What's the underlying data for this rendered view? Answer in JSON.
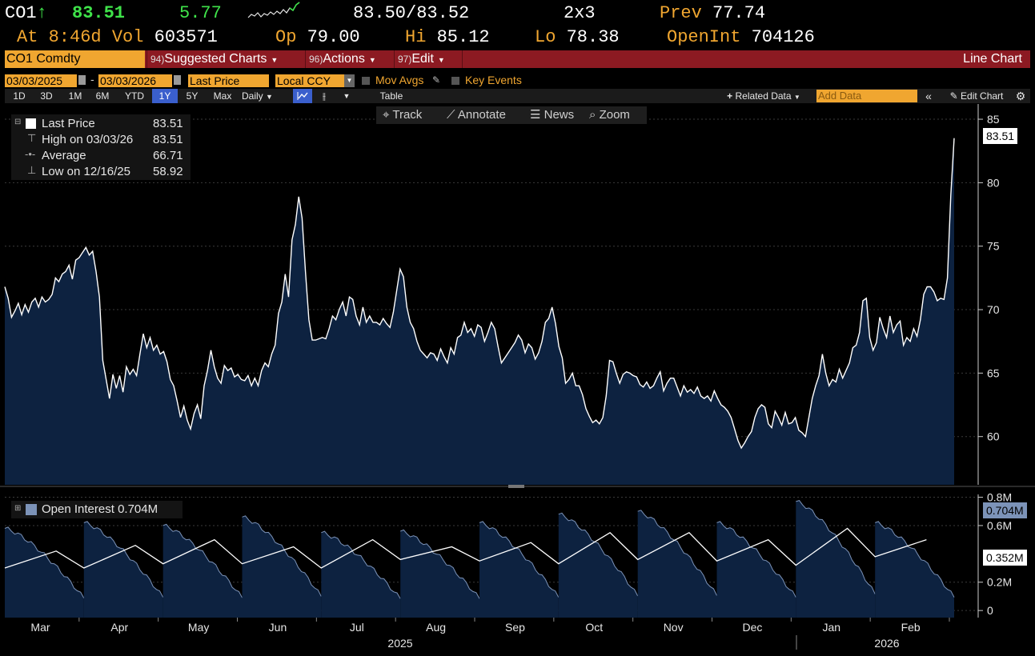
{
  "quote": {
    "ticker": "CO1",
    "direction_arrow": "↑",
    "last": "83.51",
    "change": "5.77",
    "bid_ask": "83.50/83.52",
    "size": "2x3",
    "prev_label": "Prev",
    "prev": "77.74",
    "at_label": "At",
    "time": "8:46d",
    "vol_label": "Vol",
    "vol": "603571",
    "open_label": "Op",
    "open": "79.00",
    "hi_label": "Hi",
    "hi": "85.12",
    "lo_label": "Lo",
    "lo": "78.38",
    "oi_label": "OpenInt",
    "oi": "704126"
  },
  "command_bar": {
    "security": "CO1 Comdty",
    "suggested": {
      "num": "94)",
      "label": "Suggested Charts"
    },
    "actions": {
      "num": "96)",
      "label": "Actions"
    },
    "edit": {
      "num": "97)",
      "label": "Edit"
    },
    "chart_type": "Line Chart"
  },
  "range": {
    "start": "03/03/2025",
    "sep": "-",
    "end": "03/03/2026",
    "field": "Last Price",
    "currency": "Local CCY",
    "mov_avgs": "Mov Avgs",
    "key_events": "Key Events"
  },
  "toolbar": {
    "periods": [
      "1D",
      "3D",
      "1M",
      "6M",
      "YTD",
      "1Y",
      "5Y",
      "Max"
    ],
    "selected_period": "1Y",
    "frequency": "Daily",
    "table": "Table",
    "related": "Related Data",
    "add_data_placeholder": "Add Data",
    "edit_chart": "Edit Chart"
  },
  "overlay": {
    "track": "Track",
    "annotate": "Annotate",
    "news": "News",
    "zoom": "Zoom"
  },
  "legend": {
    "last_price_label": "Last Price",
    "last_price": "83.51",
    "high_label": "High on 03/03/26",
    "high": "83.51",
    "average_label": "Average",
    "average": "66.71",
    "low_label": "Low on 12/16/25",
    "low": "58.92"
  },
  "oi_legend": {
    "label": "Open Interest",
    "value": "0.704M"
  },
  "tags": {
    "price": "83.51",
    "oi": "0.704M",
    "oi2": "0.352M"
  },
  "colors": {
    "accent": "#f0a630",
    "command_bar": "#8c1a22",
    "area": "#0d2240",
    "line": "#ffffff",
    "positive": "#3fe34a"
  },
  "chart_data": [
    {
      "type": "area",
      "series_name": "Last Price",
      "x_start": "2025-03-03",
      "x_end": "2026-03-03",
      "values": [
        71.8,
        70.9,
        69.4,
        69.9,
        70.5,
        69.6,
        70.4,
        69.8,
        70.6,
        70.9,
        70.2,
        71.0,
        70.6,
        70.8,
        71.2,
        72.5,
        72.2,
        72.8,
        73.0,
        73.5,
        72.4,
        73.9,
        74.1,
        74.5,
        74.9,
        74.3,
        74.6,
        73.0,
        71.0,
        66.0,
        64.5,
        63.0,
        64.9,
        63.8,
        64.8,
        63.5,
        65.5,
        64.9,
        65.3,
        64.8,
        66.5,
        68.1,
        67.0,
        67.8,
        66.8,
        67.2,
        66.5,
        66.7,
        65.9,
        64.5,
        64.0,
        62.8,
        61.5,
        62.4,
        61.3,
        60.6,
        61.8,
        62.5,
        61.4,
        64.0,
        65.2,
        66.8,
        65.5,
        64.6,
        64.2,
        65.6,
        65.2,
        65.4,
        64.7,
        64.9,
        64.5,
        64.4,
        64.8,
        64.0,
        64.6,
        64.0,
        65.2,
        65.8,
        65.5,
        66.5,
        67.2,
        69.7,
        70.6,
        72.8,
        71.0,
        75.5,
        76.7,
        78.9,
        77.2,
        73.0,
        69.2,
        67.6,
        67.6,
        67.7,
        67.8,
        67.7,
        68.5,
        69.5,
        69.2,
        70.0,
        70.6,
        69.5,
        71.0,
        70.8,
        69.5,
        68.8,
        70.2,
        69.0,
        69.5,
        69.0,
        69.0,
        68.8,
        69.3,
        68.9,
        68.6,
        69.8,
        71.5,
        73.2,
        72.6,
        70.2,
        69.0,
        68.5,
        67.5,
        66.8,
        66.5,
        66.2,
        66.6,
        66.5,
        66.0,
        66.9,
        66.3,
        65.8,
        67.0,
        66.5,
        67.8,
        68.0,
        69.0,
        68.2,
        68.5,
        67.9,
        68.8,
        68.6,
        67.5,
        68.2,
        69.0,
        68.5,
        67.1,
        65.8,
        66.2,
        66.6,
        67.0,
        67.4,
        68.0,
        67.6,
        66.6,
        67.3,
        67.0,
        66.1,
        66.6,
        67.5,
        69.0,
        69.3,
        70.2,
        68.9,
        67.1,
        66.2,
        64.2,
        64.5,
        65.0,
        64.0,
        64.0,
        63.3,
        62.2,
        61.6,
        61.1,
        61.3,
        61.0,
        61.5,
        63.2,
        66.0,
        65.9,
        65.0,
        64.2,
        64.9,
        65.1,
        65.0,
        64.8,
        64.7,
        64.1,
        63.9,
        64.3,
        63.8,
        64.0,
        64.6,
        65.1,
        63.6,
        64.2,
        64.6,
        64.6,
        63.9,
        63.2,
        64.0,
        63.5,
        63.7,
        63.4,
        63.9,
        63.2,
        63.0,
        63.2,
        62.8,
        63.6,
        63.0,
        62.5,
        62.3,
        62.0,
        61.5,
        60.6,
        59.7,
        59.1,
        59.5,
        60.0,
        60.4,
        61.5,
        62.2,
        62.5,
        62.3,
        61.0,
        60.7,
        62.0,
        61.5,
        60.9,
        61.9,
        61.0,
        61.1,
        61.5,
        60.5,
        60.3,
        60.0,
        61.5,
        63.0,
        64.0,
        64.8,
        66.5,
        65.0,
        64.0,
        64.5,
        64.3,
        65.3,
        64.6,
        65.2,
        65.8,
        67.0,
        67.2,
        68.2,
        70.7,
        70.9,
        67.8,
        66.8,
        67.4,
        69.4,
        68.5,
        67.8,
        69.5,
        68.2,
        68.8,
        69.1,
        67.2,
        67.8,
        67.5,
        68.5,
        67.9,
        69.2,
        71.2,
        71.8,
        71.8,
        71.4,
        70.7,
        70.9,
        70.8,
        72.5,
        79.0,
        83.51
      ],
      "ylim": [
        56.2,
        86.2
      ],
      "yticks": [
        60,
        65,
        70,
        75,
        80,
        85
      ],
      "months": [
        "Mar",
        "Apr",
        "May",
        "Jun",
        "Jul",
        "Aug",
        "Sep",
        "Oct",
        "Nov",
        "Dec",
        "Jan",
        "Feb"
      ],
      "years": [
        "2025",
        "2026"
      ],
      "high": 83.51,
      "average": 66.71,
      "low": 58.92
    },
    {
      "type": "area",
      "series_name": "Open Interest",
      "unit": "M",
      "ylim": [
        -0.05,
        0.82
      ],
      "yticks": [
        0,
        0.2,
        0.6,
        0.8
      ],
      "ytick_labels": [
        "0",
        "0.2M",
        "0.6M",
        "0.8M"
      ],
      "tag_value": 0.704,
      "mid_value": 0.352
    }
  ]
}
